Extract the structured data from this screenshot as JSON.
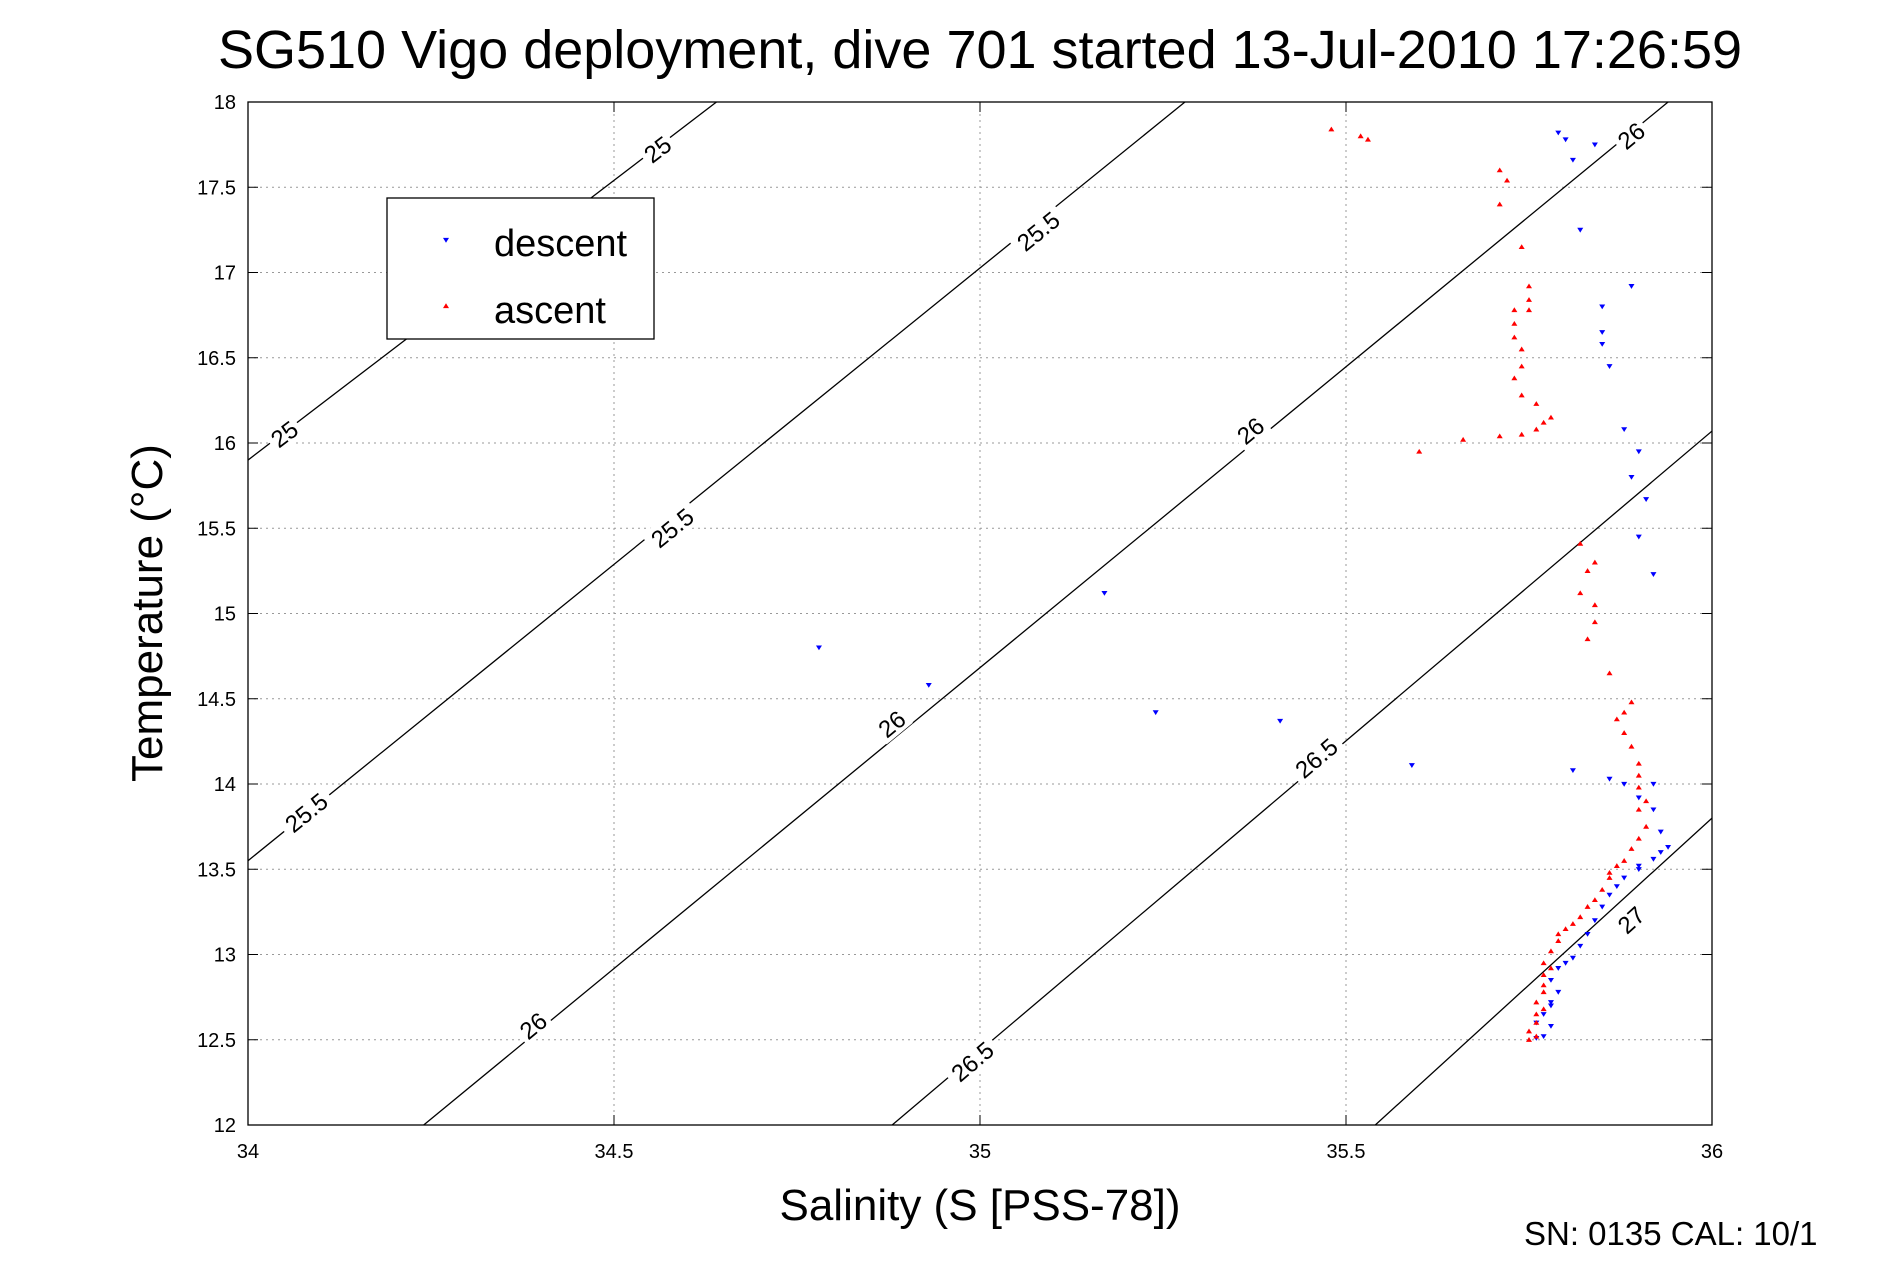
{
  "chart_data": {
    "type": "scatter",
    "title": "SG510 Vigo deployment, dive 701 started 13-Jul-2010 17:26:59",
    "xlabel": "Salinity (S [PSS-78])",
    "ylabel": "Temperature (°C)",
    "footer": "SN: 0135  CAL: 10/1",
    "xlim": [
      34,
      36
    ],
    "ylim": [
      12,
      18
    ],
    "xticks": [
      "34",
      "34.5",
      "35",
      "35.5",
      "36"
    ],
    "yticks": [
      "12",
      "12.5",
      "13",
      "13.5",
      "14",
      "14.5",
      "15",
      "15.5",
      "16",
      "16.5",
      "17",
      "17.5",
      "18"
    ],
    "grid": true,
    "legend_position": "top-left",
    "legend": [
      {
        "name": "descent",
        "color": "#0000ff",
        "marker": "triangle-down"
      },
      {
        "name": "ascent",
        "color": "#ff0000",
        "marker": "triangle-up"
      }
    ],
    "contours": [
      {
        "sigma": "25",
        "points": [
          [
            34.0,
            15.9
          ],
          [
            34.64,
            18.0
          ]
        ],
        "labels": [
          [
            34.05,
            16.05
          ],
          [
            34.56,
            17.72
          ]
        ]
      },
      {
        "sigma": "25.5",
        "points": [
          [
            34.0,
            13.55
          ],
          [
            35.28,
            18.0
          ]
        ],
        "labels": [
          [
            34.08,
            13.83
          ],
          [
            34.58,
            15.5
          ],
          [
            35.08,
            17.24
          ]
        ]
      },
      {
        "sigma": "26",
        "points": [
          [
            34.24,
            12.0
          ],
          [
            35.94,
            18.0
          ]
        ],
        "labels": [
          [
            34.39,
            12.58
          ],
          [
            34.88,
            14.35
          ],
          [
            35.37,
            16.07
          ],
          [
            35.89,
            17.8
          ]
        ]
      },
      {
        "sigma": "26.5",
        "points": [
          [
            34.88,
            12.0
          ],
          [
            36.0,
            16.07
          ]
        ],
        "labels": [
          [
            34.99,
            12.37
          ],
          [
            35.46,
            14.15
          ]
        ]
      },
      {
        "sigma": "27",
        "points": [
          [
            35.54,
            12.0
          ],
          [
            36.0,
            13.8
          ]
        ],
        "labels": [
          [
            35.89,
            13.2
          ]
        ]
      }
    ],
    "series": [
      {
        "name": "descent",
        "color": "#0000ff",
        "marker": "triangle-down",
        "points": [
          [
            35.79,
            17.82
          ],
          [
            35.8,
            17.78
          ],
          [
            35.84,
            17.75
          ],
          [
            35.81,
            17.66
          ],
          [
            35.82,
            17.25
          ],
          [
            35.89,
            16.92
          ],
          [
            35.85,
            16.8
          ],
          [
            35.85,
            16.65
          ],
          [
            35.85,
            16.58
          ],
          [
            35.86,
            16.45
          ],
          [
            35.88,
            16.08
          ],
          [
            35.9,
            15.95
          ],
          [
            35.89,
            15.8
          ],
          [
            35.91,
            15.67
          ],
          [
            35.9,
            15.45
          ],
          [
            35.92,
            15.23
          ],
          [
            35.17,
            15.12
          ],
          [
            34.78,
            14.8
          ],
          [
            34.93,
            14.58
          ],
          [
            35.24,
            14.42
          ],
          [
            35.41,
            14.37
          ],
          [
            35.59,
            14.11
          ],
          [
            35.81,
            14.08
          ],
          [
            35.86,
            14.03
          ],
          [
            35.92,
            14.0
          ],
          [
            35.88,
            14.0
          ],
          [
            35.9,
            13.92
          ],
          [
            35.92,
            13.85
          ],
          [
            35.93,
            13.72
          ],
          [
            35.94,
            13.63
          ],
          [
            35.93,
            13.6
          ],
          [
            35.92,
            13.56
          ],
          [
            35.9,
            13.52
          ],
          [
            35.9,
            13.5
          ],
          [
            35.88,
            13.45
          ],
          [
            35.87,
            13.4
          ],
          [
            35.86,
            13.35
          ],
          [
            35.85,
            13.28
          ],
          [
            35.84,
            13.2
          ],
          [
            35.83,
            13.12
          ],
          [
            35.82,
            13.05
          ],
          [
            35.81,
            12.98
          ],
          [
            35.8,
            12.95
          ],
          [
            35.79,
            12.92
          ],
          [
            35.78,
            12.85
          ],
          [
            35.79,
            12.78
          ],
          [
            35.78,
            12.72
          ],
          [
            35.78,
            12.7
          ],
          [
            35.77,
            12.65
          ],
          [
            35.76,
            12.6
          ],
          [
            35.78,
            12.58
          ],
          [
            35.77,
            12.52
          ],
          [
            35.76,
            12.51
          ]
        ]
      },
      {
        "name": "ascent",
        "color": "#ff0000",
        "marker": "triangle-up",
        "points": [
          [
            35.48,
            17.84
          ],
          [
            35.52,
            17.8
          ],
          [
            35.53,
            17.78
          ],
          [
            35.71,
            17.6
          ],
          [
            35.72,
            17.54
          ],
          [
            35.71,
            17.4
          ],
          [
            35.74,
            17.15
          ],
          [
            35.75,
            16.92
          ],
          [
            35.75,
            16.84
          ],
          [
            35.73,
            16.78
          ],
          [
            35.75,
            16.78
          ],
          [
            35.73,
            16.7
          ],
          [
            35.73,
            16.62
          ],
          [
            35.74,
            16.55
          ],
          [
            35.74,
            16.45
          ],
          [
            35.73,
            16.38
          ],
          [
            35.74,
            16.28
          ],
          [
            35.76,
            16.23
          ],
          [
            35.78,
            16.15
          ],
          [
            35.77,
            16.12
          ],
          [
            35.76,
            16.08
          ],
          [
            35.74,
            16.05
          ],
          [
            35.71,
            16.04
          ],
          [
            35.66,
            16.02
          ],
          [
            35.6,
            15.95
          ],
          [
            35.82,
            15.41
          ],
          [
            35.83,
            15.25
          ],
          [
            35.84,
            15.3
          ],
          [
            35.82,
            15.12
          ],
          [
            35.84,
            15.05
          ],
          [
            35.84,
            14.95
          ],
          [
            35.83,
            14.85
          ],
          [
            35.86,
            14.65
          ],
          [
            35.89,
            14.48
          ],
          [
            35.88,
            14.42
          ],
          [
            35.87,
            14.38
          ],
          [
            35.88,
            14.3
          ],
          [
            35.89,
            14.22
          ],
          [
            35.9,
            14.12
          ],
          [
            35.9,
            14.05
          ],
          [
            35.9,
            13.98
          ],
          [
            35.91,
            13.9
          ],
          [
            35.9,
            13.85
          ],
          [
            35.91,
            13.75
          ],
          [
            35.9,
            13.68
          ],
          [
            35.89,
            13.62
          ],
          [
            35.88,
            13.55
          ],
          [
            35.87,
            13.52
          ],
          [
            35.86,
            13.48
          ],
          [
            35.86,
            13.45
          ],
          [
            35.85,
            13.38
          ],
          [
            35.84,
            13.32
          ],
          [
            35.83,
            13.28
          ],
          [
            35.82,
            13.22
          ],
          [
            35.81,
            13.18
          ],
          [
            35.8,
            13.15
          ],
          [
            35.79,
            13.12
          ],
          [
            35.79,
            13.08
          ],
          [
            35.78,
            13.02
          ],
          [
            35.77,
            12.95
          ],
          [
            35.78,
            12.92
          ],
          [
            35.77,
            12.88
          ],
          [
            35.77,
            12.82
          ],
          [
            35.77,
            12.78
          ],
          [
            35.76,
            12.72
          ],
          [
            35.77,
            12.68
          ],
          [
            35.76,
            12.65
          ],
          [
            35.76,
            12.6
          ],
          [
            35.75,
            12.55
          ],
          [
            35.76,
            12.52
          ],
          [
            35.75,
            12.5
          ]
        ]
      }
    ]
  }
}
